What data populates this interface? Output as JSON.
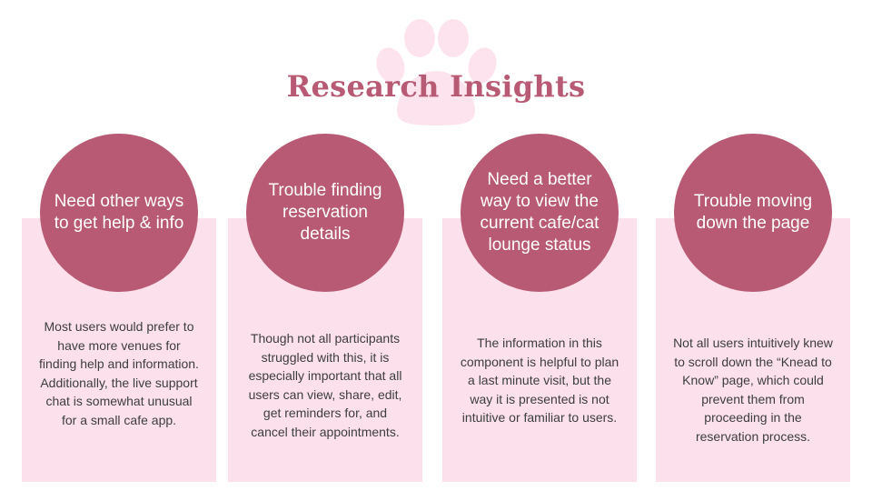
{
  "title": "Research Insights",
  "colors": {
    "accent": "#b85a73",
    "panel": "#fce1ec",
    "paw": "#fde3ee",
    "body_text": "#3d3d3d"
  },
  "decoration": {
    "paw_icon": "paw-print-icon"
  },
  "insights": [
    {
      "heading": "Need other ways to get help & info",
      "body": "Most users would prefer to have more venues for finding help and information. Additionally, the live support chat is somewhat unusual for a small cafe app."
    },
    {
      "heading": "Trouble finding reservation details",
      "body": "Though not all participants struggled with this, it is especially important that all users can view, share, edit, get reminders for, and cancel their appointments."
    },
    {
      "heading": "Need a better way to view the current cafe/cat lounge status",
      "body": "The information in this component is helpful to plan a last minute visit, but the way it is presented is not intuitive or familiar to users."
    },
    {
      "heading": "Trouble moving down the page",
      "body": "Not all users intuitively knew to scroll down the “Knead to Know” page, which could prevent them from proceeding in the reservation process."
    }
  ]
}
